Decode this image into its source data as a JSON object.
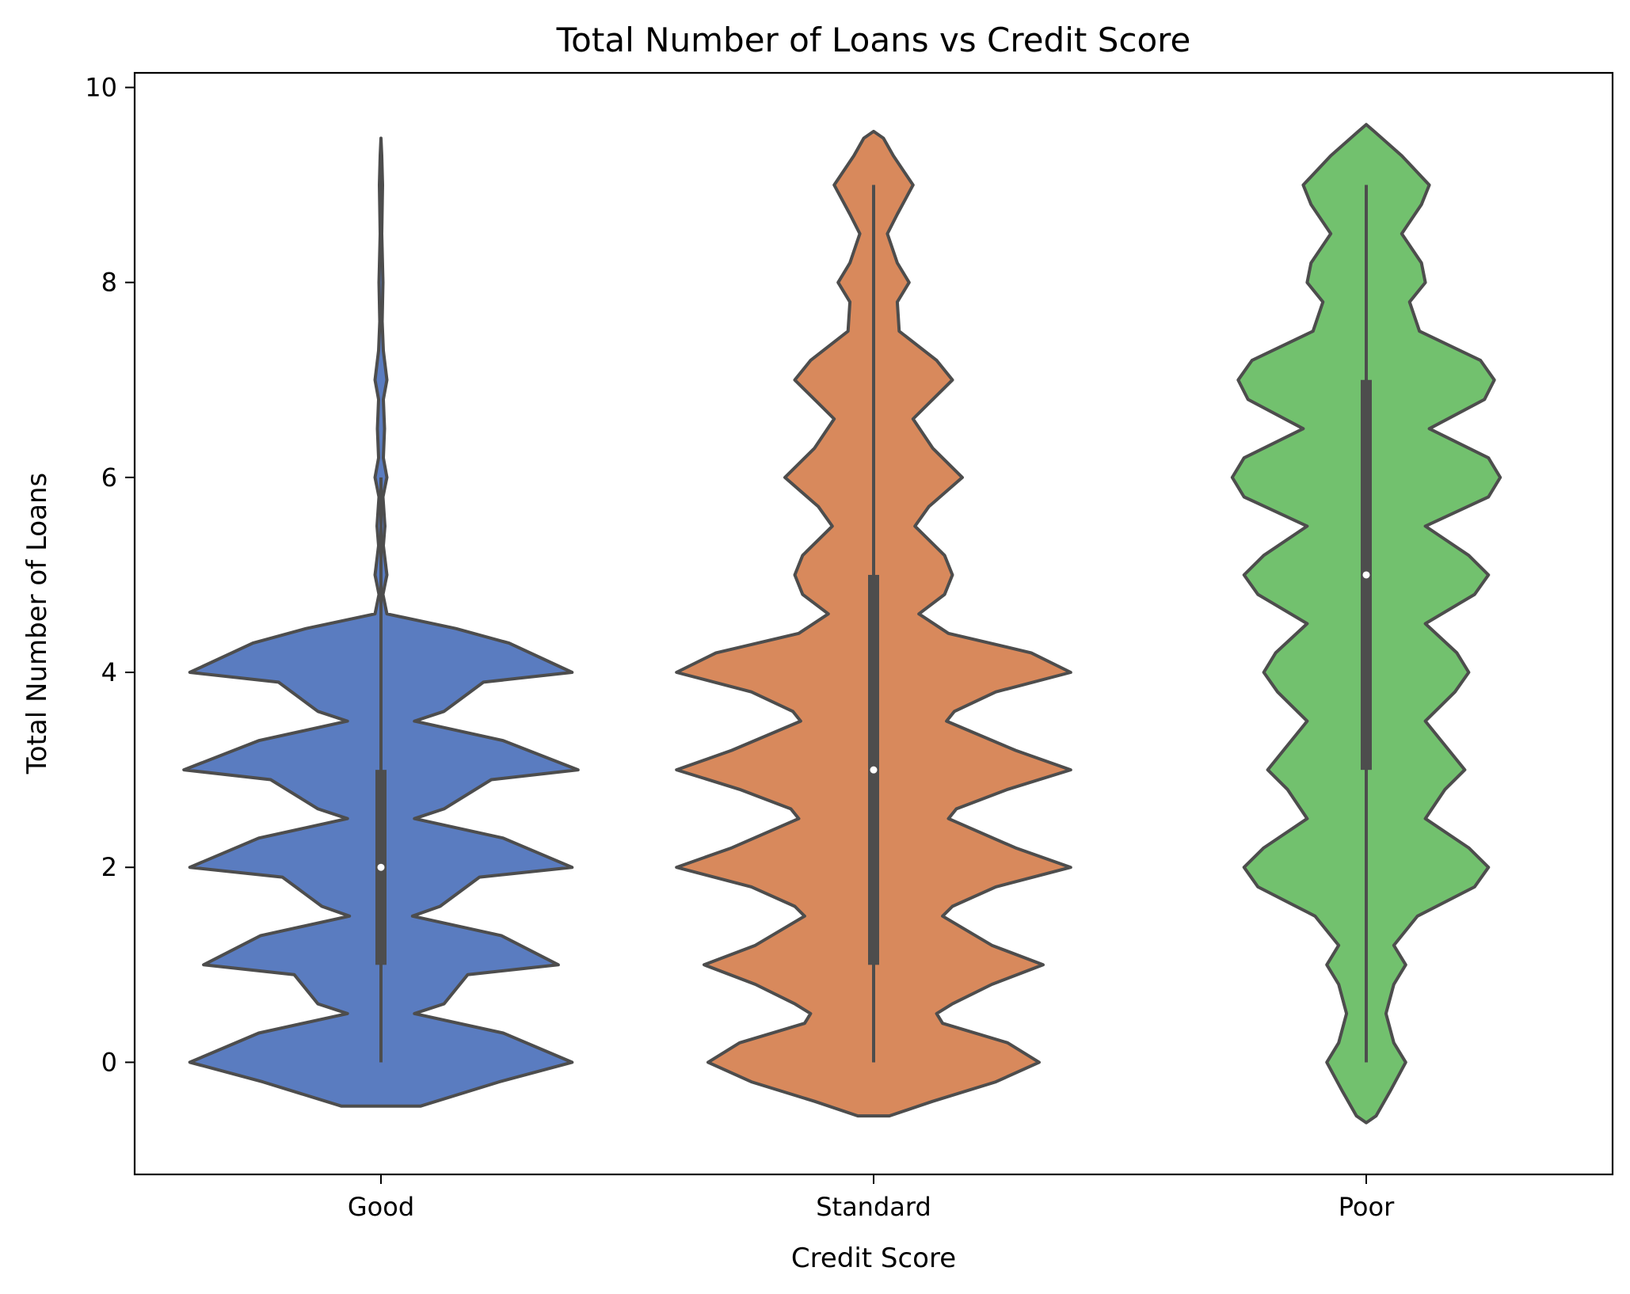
{
  "chart_data": {
    "type": "violin",
    "title": "Total Number of Loans vs Credit Score",
    "xlabel": "Credit Score",
    "ylabel": "Total Number of Loans",
    "ylim": [
      -1.15,
      10.15
    ],
    "yticks": [
      0,
      2,
      4,
      6,
      8,
      10
    ],
    "categories": [
      "Good",
      "Standard",
      "Poor"
    ],
    "colors": [
      "#5a7cc0",
      "#d8895c",
      "#72c16e"
    ],
    "outline_color": "#4d4d4d",
    "series": [
      {
        "category": "Good",
        "min": 0,
        "q1": 1,
        "median": 2,
        "q3": 3,
        "max": 6,
        "whisker_low": 0,
        "whisker_high": 6,
        "density": [
          [
            -0.45,
            0.2
          ],
          [
            -0.2,
            0.6
          ],
          [
            0.0,
            0.97
          ],
          [
            0.3,
            0.62
          ],
          [
            0.5,
            0.17
          ],
          [
            0.6,
            0.32
          ],
          [
            0.9,
            0.44
          ],
          [
            1.0,
            0.9
          ],
          [
            1.3,
            0.61
          ],
          [
            1.5,
            0.16
          ],
          [
            1.6,
            0.3
          ],
          [
            1.9,
            0.5
          ],
          [
            2.0,
            0.97
          ],
          [
            2.3,
            0.62
          ],
          [
            2.5,
            0.17
          ],
          [
            2.6,
            0.32
          ],
          [
            2.9,
            0.56
          ],
          [
            3.0,
            1.0
          ],
          [
            3.3,
            0.62
          ],
          [
            3.5,
            0.17
          ],
          [
            3.6,
            0.32
          ],
          [
            3.9,
            0.52
          ],
          [
            4.0,
            0.97
          ],
          [
            4.3,
            0.65
          ],
          [
            4.45,
            0.38
          ],
          [
            4.6,
            0.03
          ],
          [
            4.8,
            0.01
          ],
          [
            5.0,
            0.03
          ],
          [
            5.3,
            0.012
          ],
          [
            5.5,
            0.02
          ],
          [
            5.8,
            0.01
          ],
          [
            6.0,
            0.03
          ],
          [
            6.2,
            0.012
          ],
          [
            6.5,
            0.018
          ],
          [
            6.8,
            0.012
          ],
          [
            7.0,
            0.03
          ],
          [
            7.3,
            0.012
          ],
          [
            7.6,
            0.006
          ],
          [
            8.0,
            0.01
          ],
          [
            8.5,
            0.004
          ],
          [
            9.0,
            0.008
          ],
          [
            9.3,
            0.004
          ],
          [
            9.48,
            0.0
          ]
        ]
      },
      {
        "category": "Standard",
        "min": 0,
        "q1": 1,
        "median": 3,
        "q3": 5,
        "max": 9,
        "whisker_low": 0,
        "whisker_high": 9,
        "density": [
          [
            -0.55,
            0.08
          ],
          [
            -0.4,
            0.3
          ],
          [
            -0.2,
            0.62
          ],
          [
            0.0,
            0.84
          ],
          [
            0.2,
            0.68
          ],
          [
            0.4,
            0.35
          ],
          [
            0.5,
            0.32
          ],
          [
            0.6,
            0.4
          ],
          [
            0.8,
            0.6
          ],
          [
            1.0,
            0.86
          ],
          [
            1.2,
            0.6
          ],
          [
            1.5,
            0.35
          ],
          [
            1.6,
            0.4
          ],
          [
            1.8,
            0.62
          ],
          [
            2.0,
            1.0
          ],
          [
            2.2,
            0.72
          ],
          [
            2.5,
            0.38
          ],
          [
            2.6,
            0.42
          ],
          [
            2.8,
            0.68
          ],
          [
            3.0,
            1.0
          ],
          [
            3.2,
            0.72
          ],
          [
            3.5,
            0.37
          ],
          [
            3.6,
            0.41
          ],
          [
            3.8,
            0.62
          ],
          [
            4.0,
            1.0
          ],
          [
            4.2,
            0.8
          ],
          [
            4.4,
            0.38
          ],
          [
            4.6,
            0.23
          ],
          [
            4.8,
            0.36
          ],
          [
            5.0,
            0.4
          ],
          [
            5.2,
            0.36
          ],
          [
            5.5,
            0.21
          ],
          [
            5.7,
            0.28
          ],
          [
            6.0,
            0.45
          ],
          [
            6.3,
            0.3
          ],
          [
            6.6,
            0.2
          ],
          [
            6.8,
            0.3
          ],
          [
            7.0,
            0.4
          ],
          [
            7.2,
            0.32
          ],
          [
            7.5,
            0.13
          ],
          [
            7.8,
            0.12
          ],
          [
            8.0,
            0.18
          ],
          [
            8.2,
            0.12
          ],
          [
            8.5,
            0.07
          ],
          [
            8.7,
            0.12
          ],
          [
            9.0,
            0.2
          ],
          [
            9.3,
            0.1
          ],
          [
            9.48,
            0.05
          ],
          [
            9.55,
            0.0
          ]
        ]
      },
      {
        "category": "Poor",
        "min": 0,
        "q1": 3,
        "median": 5,
        "q3": 7,
        "max": 9,
        "whisker_low": 0,
        "whisker_high": 9,
        "density": [
          [
            -0.62,
            0.0
          ],
          [
            -0.55,
            0.05
          ],
          [
            -0.3,
            0.12
          ],
          [
            0.0,
            0.2
          ],
          [
            0.2,
            0.14
          ],
          [
            0.5,
            0.1
          ],
          [
            0.8,
            0.14
          ],
          [
            1.0,
            0.2
          ],
          [
            1.2,
            0.14
          ],
          [
            1.5,
            0.26
          ],
          [
            1.8,
            0.55
          ],
          [
            2.0,
            0.62
          ],
          [
            2.2,
            0.52
          ],
          [
            2.5,
            0.3
          ],
          [
            2.8,
            0.4
          ],
          [
            3.0,
            0.5
          ],
          [
            3.2,
            0.42
          ],
          [
            3.5,
            0.3
          ],
          [
            3.8,
            0.45
          ],
          [
            4.0,
            0.52
          ],
          [
            4.2,
            0.46
          ],
          [
            4.5,
            0.3
          ],
          [
            4.8,
            0.55
          ],
          [
            5.0,
            0.62
          ],
          [
            5.2,
            0.52
          ],
          [
            5.5,
            0.3
          ],
          [
            5.8,
            0.62
          ],
          [
            6.0,
            0.68
          ],
          [
            6.2,
            0.62
          ],
          [
            6.5,
            0.32
          ],
          [
            6.8,
            0.6
          ],
          [
            7.0,
            0.65
          ],
          [
            7.2,
            0.58
          ],
          [
            7.5,
            0.27
          ],
          [
            7.8,
            0.22
          ],
          [
            8.0,
            0.3
          ],
          [
            8.2,
            0.28
          ],
          [
            8.5,
            0.18
          ],
          [
            8.8,
            0.28
          ],
          [
            9.0,
            0.32
          ],
          [
            9.3,
            0.18
          ],
          [
            9.55,
            0.04
          ],
          [
            9.62,
            0.0
          ]
        ]
      }
    ]
  }
}
